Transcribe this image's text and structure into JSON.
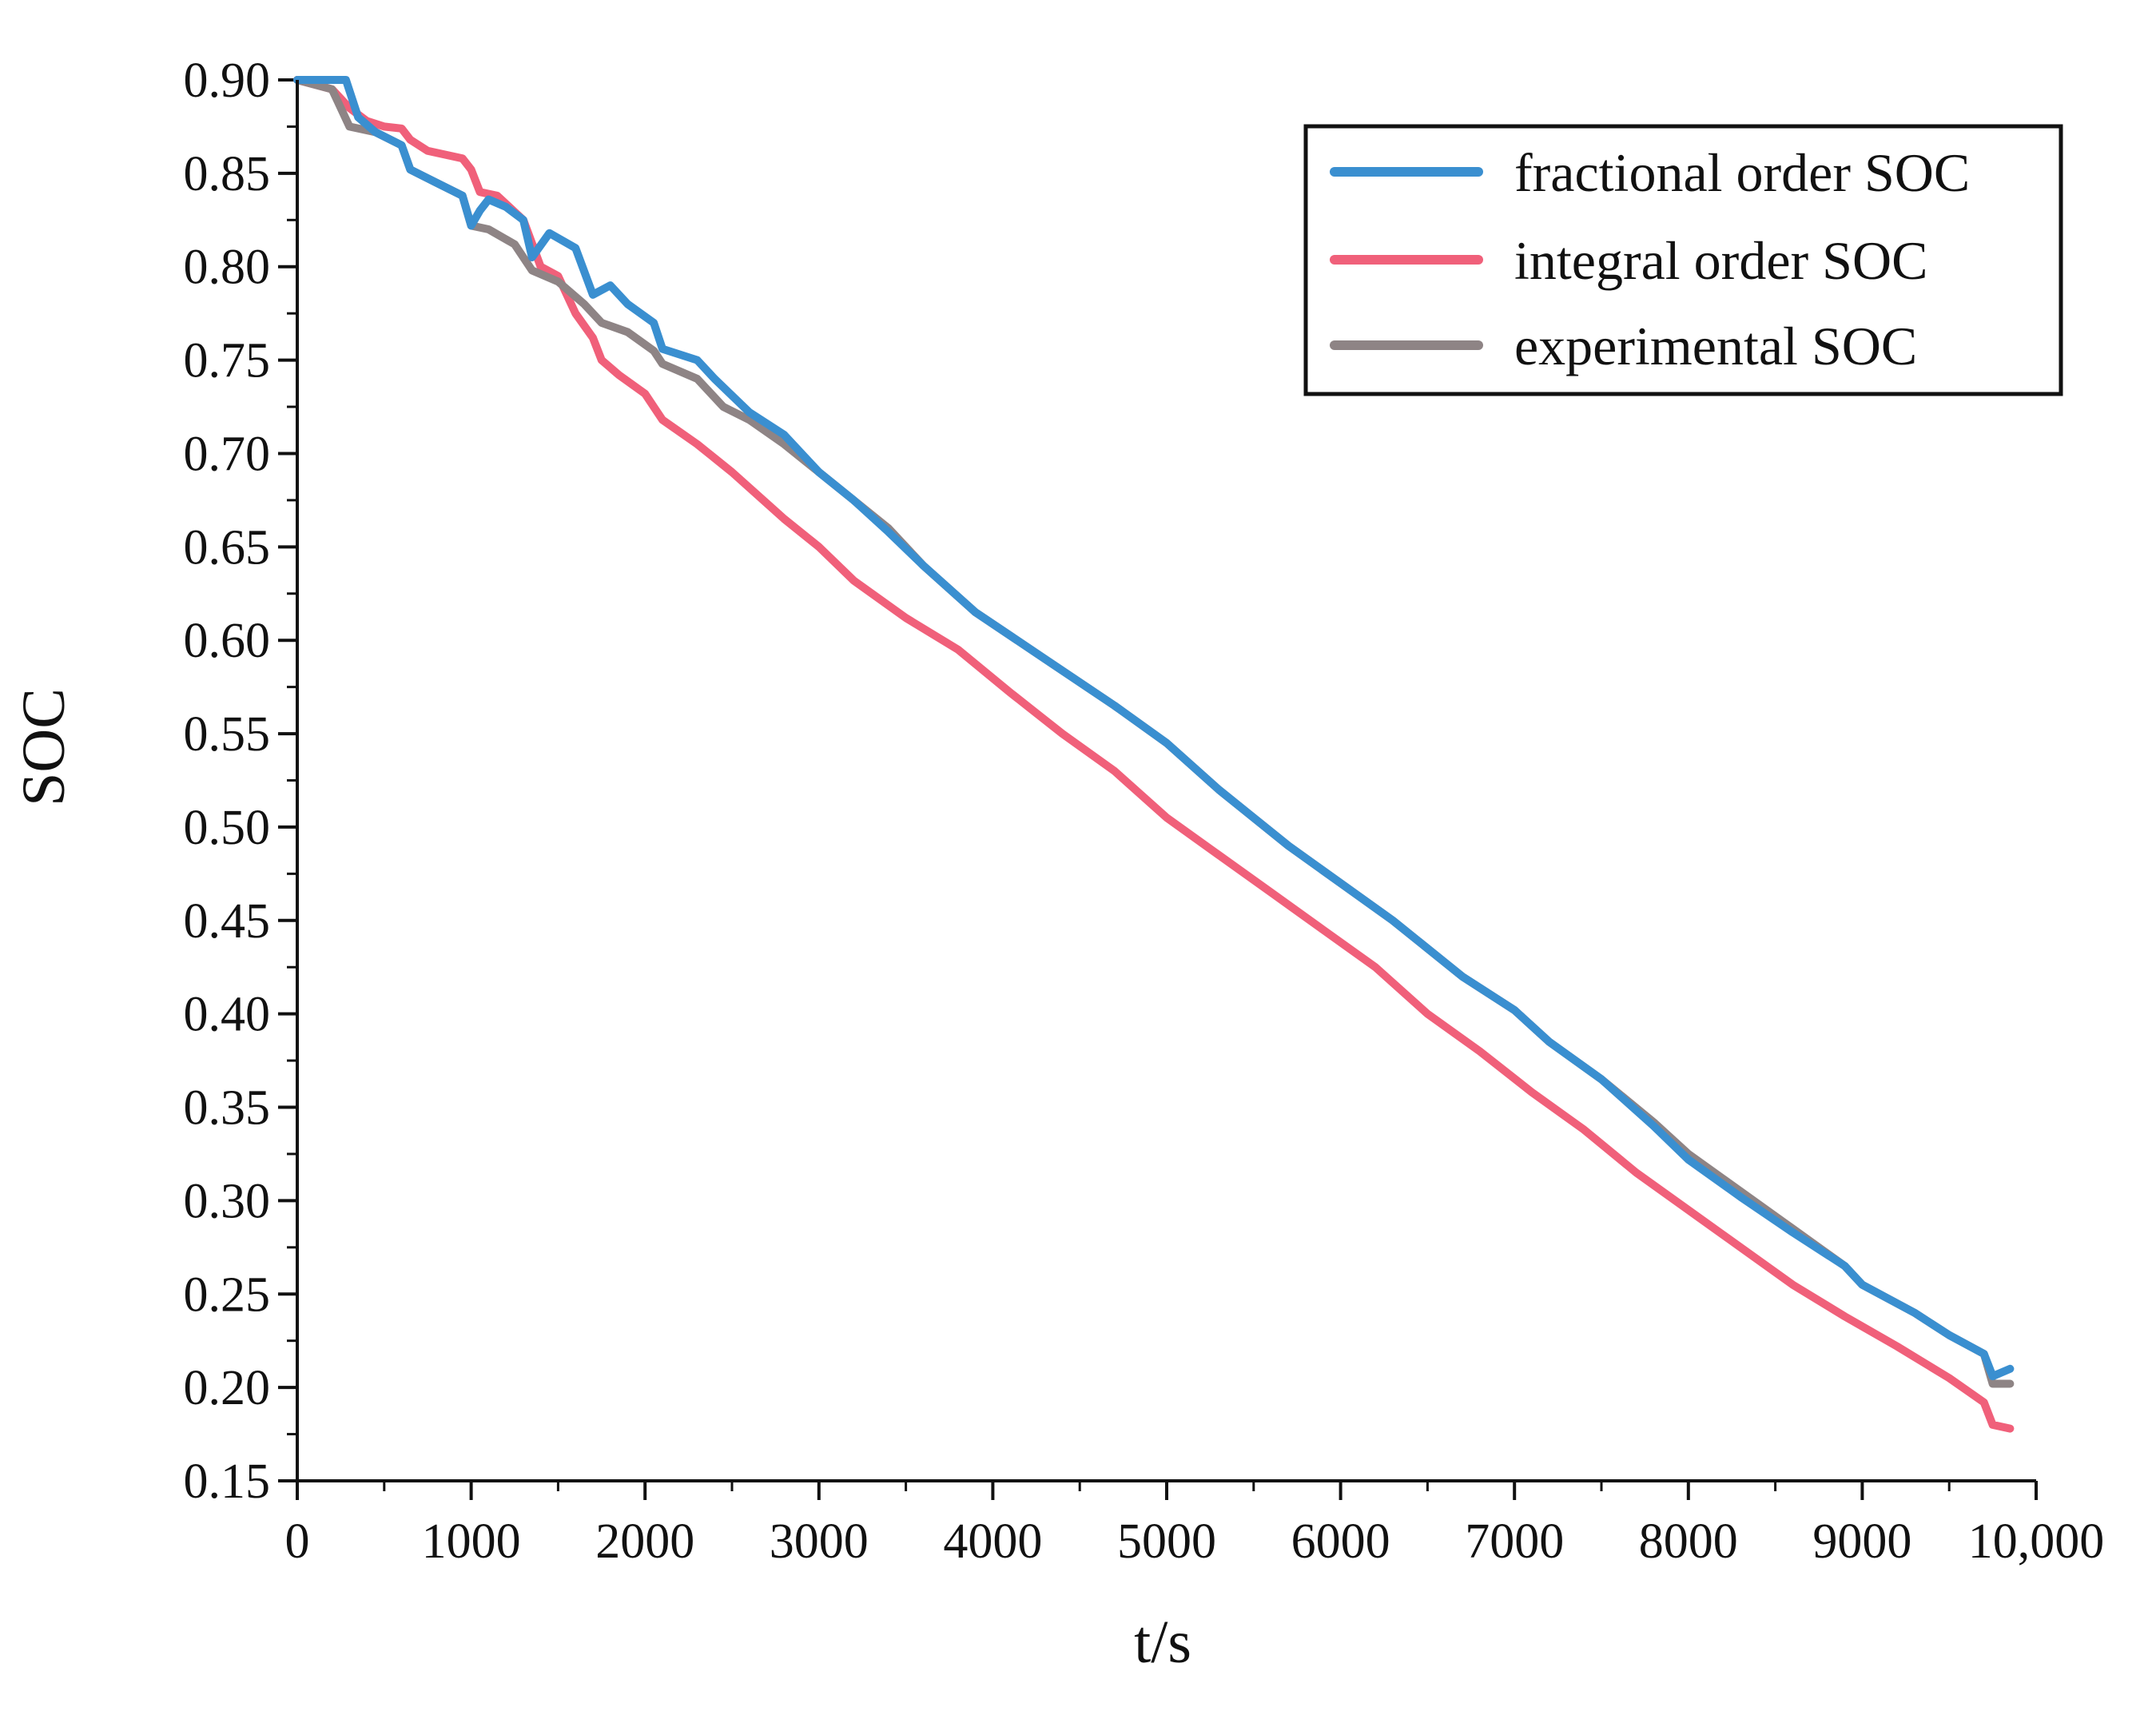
{
  "chart_data": {
    "type": "line",
    "title": "",
    "xlabel": "t/s",
    "ylabel": "SOC",
    "xlim": [
      0,
      10000
    ],
    "ylim": [
      0.15,
      0.9
    ],
    "xticks": [
      0,
      1000,
      2000,
      3000,
      4000,
      5000,
      6000,
      7000,
      8000,
      9000,
      10000
    ],
    "xtick_labels": [
      "0",
      "1000",
      "2000",
      "3000",
      "4000",
      "5000",
      "6000",
      "7000",
      "8000",
      "9000",
      "10,000"
    ],
    "yticks": [
      0.15,
      0.2,
      0.25,
      0.3,
      0.35,
      0.4,
      0.45,
      0.5,
      0.55,
      0.6,
      0.65,
      0.7,
      0.75,
      0.8,
      0.85,
      0.9
    ],
    "ytick_labels": [
      "0.15",
      "0.20",
      "0.25",
      "0.30",
      "0.35",
      "0.40",
      "0.45",
      "0.50",
      "0.55",
      "0.60",
      "0.65",
      "0.70",
      "0.75",
      "0.80",
      "0.85",
      "0.90"
    ],
    "grid": false,
    "legend_position": "top-right",
    "series": [
      {
        "name": "fractional order SOC",
        "color": "#3a8fd0",
        "x": [
          0,
          280,
          350,
          450,
          600,
          650,
          800,
          950,
          1000,
          1050,
          1100,
          1200,
          1300,
          1350,
          1450,
          1600,
          1700,
          1800,
          1900,
          2050,
          2100,
          2300,
          2400,
          2600,
          2800,
          3000,
          3200,
          3400,
          3600,
          3900,
          4300,
          4700,
          5000,
          5300,
          5700,
          6000,
          6300,
          6700,
          7000,
          7200,
          7500,
          7800,
          8000,
          8300,
          8600,
          8900,
          9000,
          9300,
          9500,
          9700,
          9750,
          9850
        ],
        "y": [
          0.9,
          0.9,
          0.88,
          0.872,
          0.865,
          0.852,
          0.845,
          0.838,
          0.822,
          0.83,
          0.836,
          0.832,
          0.825,
          0.805,
          0.818,
          0.81,
          0.785,
          0.79,
          0.78,
          0.77,
          0.756,
          0.75,
          0.74,
          0.722,
          0.71,
          0.69,
          0.675,
          0.658,
          0.64,
          0.615,
          0.59,
          0.565,
          0.545,
          0.52,
          0.49,
          0.47,
          0.45,
          0.42,
          0.402,
          0.385,
          0.365,
          0.34,
          0.322,
          0.302,
          0.283,
          0.265,
          0.255,
          0.24,
          0.228,
          0.218,
          0.206,
          0.21
        ]
      },
      {
        "name": "integral order SOC",
        "color": "#f0607a",
        "x": [
          0,
          200,
          300,
          400,
          500,
          600,
          650,
          750,
          950,
          1000,
          1050,
          1150,
          1300,
          1400,
          1500,
          1600,
          1700,
          1750,
          1850,
          2000,
          2100,
          2300,
          2500,
          2800,
          3000,
          3200,
          3500,
          3800,
          4100,
          4400,
          4700,
          5000,
          5300,
          5600,
          5900,
          6200,
          6500,
          6800,
          7100,
          7400,
          7700,
          8000,
          8300,
          8600,
          8900,
          9200,
          9500,
          9700,
          9750,
          9850
        ],
        "y": [
          0.9,
          0.895,
          0.885,
          0.878,
          0.875,
          0.874,
          0.868,
          0.862,
          0.858,
          0.852,
          0.84,
          0.838,
          0.825,
          0.8,
          0.795,
          0.775,
          0.762,
          0.75,
          0.742,
          0.732,
          0.718,
          0.705,
          0.69,
          0.665,
          0.65,
          0.632,
          0.612,
          0.595,
          0.572,
          0.55,
          0.53,
          0.505,
          0.485,
          0.465,
          0.445,
          0.425,
          0.4,
          0.38,
          0.358,
          0.338,
          0.315,
          0.295,
          0.275,
          0.255,
          0.238,
          0.222,
          0.205,
          0.192,
          0.18,
          0.178
        ]
      },
      {
        "name": "experimental SOC",
        "color": "#8e8485",
        "x": [
          0,
          200,
          300,
          450,
          600,
          650,
          800,
          950,
          1000,
          1100,
          1250,
          1350,
          1500,
          1650,
          1750,
          1900,
          2050,
          2100,
          2300,
          2450,
          2600,
          2800,
          3000,
          3200,
          3400,
          3600,
          3900,
          4300,
          4700,
          5000,
          5300,
          5700,
          6000,
          6300,
          6700,
          7000,
          7200,
          7500,
          7800,
          8000,
          8300,
          8600,
          8900,
          9000,
          9300,
          9500,
          9700,
          9750,
          9850
        ],
        "y": [
          0.9,
          0.895,
          0.875,
          0.872,
          0.865,
          0.852,
          0.845,
          0.838,
          0.822,
          0.82,
          0.812,
          0.798,
          0.792,
          0.78,
          0.77,
          0.765,
          0.755,
          0.748,
          0.74,
          0.725,
          0.718,
          0.705,
          0.69,
          0.675,
          0.66,
          0.64,
          0.615,
          0.59,
          0.565,
          0.545,
          0.52,
          0.49,
          0.47,
          0.45,
          0.42,
          0.402,
          0.385,
          0.365,
          0.342,
          0.325,
          0.305,
          0.285,
          0.265,
          0.255,
          0.24,
          0.228,
          0.218,
          0.202,
          0.202
        ]
      }
    ]
  }
}
